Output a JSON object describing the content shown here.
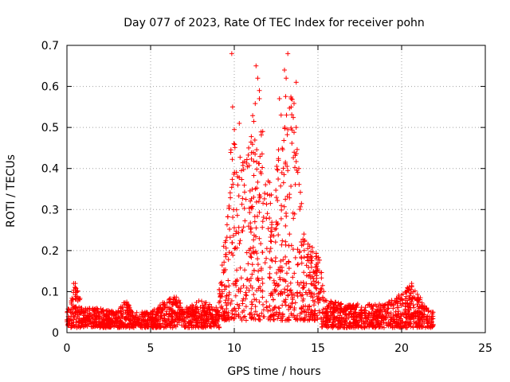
{
  "chart_data": {
    "type": "scatter",
    "title": "Day 077 of 2023, Rate Of TEC Index for receiver pohn",
    "xlabel": "GPS time / hours",
    "ylabel": "ROTI / TECUs",
    "xlim": [
      0,
      25
    ],
    "ylim": [
      0,
      0.7
    ],
    "x_ticks": [
      0,
      5,
      10,
      15,
      20,
      25
    ],
    "y_ticks": [
      0,
      0.1,
      0.2,
      0.3,
      0.4,
      0.5,
      0.6,
      0.7
    ],
    "x_tick_labels": [
      "0",
      "5",
      "10",
      "15",
      "20",
      "25"
    ],
    "y_tick_labels": [
      "0",
      "0.1",
      "0.2",
      "0.3",
      "0.4",
      "0.5",
      "0.6",
      "0.7"
    ],
    "grid": true,
    "marker": "+",
    "color": "#ff0000",
    "series": [
      {
        "name": "ROTI",
        "envelope": [
          {
            "x": 0.0,
            "y": 0.05
          },
          {
            "x": 0.3,
            "y": 0.09
          },
          {
            "x": 0.5,
            "y": 0.12
          },
          {
            "x": 1.0,
            "y": 0.06
          },
          {
            "x": 2.0,
            "y": 0.06
          },
          {
            "x": 3.0,
            "y": 0.05
          },
          {
            "x": 3.5,
            "y": 0.08
          },
          {
            "x": 4.0,
            "y": 0.05
          },
          {
            "x": 5.0,
            "y": 0.05
          },
          {
            "x": 5.5,
            "y": 0.07
          },
          {
            "x": 6.5,
            "y": 0.09
          },
          {
            "x": 7.0,
            "y": 0.06
          },
          {
            "x": 8.0,
            "y": 0.08
          },
          {
            "x": 9.0,
            "y": 0.06
          },
          {
            "x": 9.3,
            "y": 0.2
          },
          {
            "x": 9.6,
            "y": 0.3
          },
          {
            "x": 9.9,
            "y": 0.55
          },
          {
            "x": 10.2,
            "y": 0.45
          },
          {
            "x": 10.5,
            "y": 0.42
          },
          {
            "x": 11.0,
            "y": 0.47
          },
          {
            "x": 11.3,
            "y": 0.65
          },
          {
            "x": 11.8,
            "y": 0.4
          },
          {
            "x": 12.3,
            "y": 0.35
          },
          {
            "x": 12.8,
            "y": 0.5
          },
          {
            "x": 13.2,
            "y": 0.68
          },
          {
            "x": 13.6,
            "y": 0.55
          },
          {
            "x": 14.0,
            "y": 0.32
          },
          {
            "x": 14.4,
            "y": 0.24
          },
          {
            "x": 15.0,
            "y": 0.2
          },
          {
            "x": 15.5,
            "y": 0.08
          },
          {
            "x": 16.5,
            "y": 0.07
          },
          {
            "x": 17.5,
            "y": 0.07
          },
          {
            "x": 18.5,
            "y": 0.07
          },
          {
            "x": 19.5,
            "y": 0.08
          },
          {
            "x": 20.6,
            "y": 0.12
          },
          {
            "x": 21.5,
            "y": 0.06
          },
          {
            "x": 21.9,
            "y": 0.05
          }
        ],
        "notable_points": [
          {
            "x": 9.85,
            "y": 0.68
          },
          {
            "x": 11.3,
            "y": 0.65
          },
          {
            "x": 13.2,
            "y": 0.68
          },
          {
            "x": 13.0,
            "y": 0.64
          },
          {
            "x": 13.1,
            "y": 0.62
          },
          {
            "x": 11.4,
            "y": 0.62
          },
          {
            "x": 13.7,
            "y": 0.61
          },
          {
            "x": 11.5,
            "y": 0.59
          },
          {
            "x": 13.4,
            "y": 0.57
          },
          {
            "x": 11.5,
            "y": 0.57
          },
          {
            "x": 12.7,
            "y": 0.57
          },
          {
            "x": 9.9,
            "y": 0.55
          },
          {
            "x": 13.4,
            "y": 0.55
          },
          {
            "x": 12.8,
            "y": 0.53
          },
          {
            "x": 10.3,
            "y": 0.51
          },
          {
            "x": 13.7,
            "y": 0.5
          },
          {
            "x": 11.7,
            "y": 0.49
          },
          {
            "x": 0.4,
            "y": 0.12
          },
          {
            "x": 0.5,
            "y": 0.12
          },
          {
            "x": 20.6,
            "y": 0.12
          },
          {
            "x": 20.7,
            "y": 0.1
          },
          {
            "x": 14.9,
            "y": 0.18
          },
          {
            "x": 15.0,
            "y": 0.17
          }
        ]
      }
    ]
  }
}
